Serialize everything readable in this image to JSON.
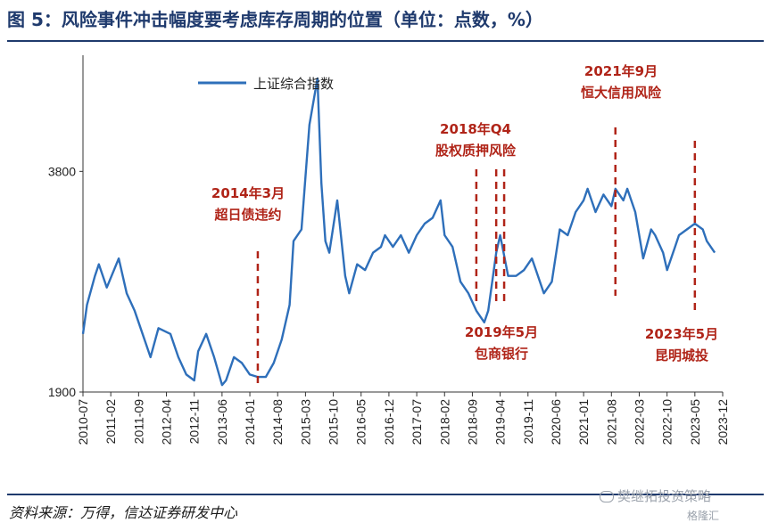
{
  "header": {
    "title": "图 5：风险事件冲击幅度要考虑库存周期的位置（单位：点数，%）"
  },
  "footer": {
    "source": "资料来源：万得，信达证券研发中心",
    "watermark": "樊继拓投资策略",
    "watermark_sub": "格隆汇"
  },
  "chart_data": {
    "type": "line",
    "title": "",
    "xlabel": "",
    "ylabel": "",
    "ylim": [
      1900,
      4800
    ],
    "yticks": [
      1900,
      3800
    ],
    "xlim": [
      "2010-07",
      "2023-12"
    ],
    "xticks": [
      "2010-07",
      "2011-02",
      "2011-09",
      "2012-04",
      "2012-11",
      "2013-06",
      "2014-01",
      "2014-08",
      "2015-03",
      "2015-10",
      "2016-05",
      "2016-12",
      "2017-07",
      "2018-02",
      "2018-09",
      "2019-04",
      "2019-11",
      "2020-06",
      "2021-01",
      "2021-08",
      "2022-03",
      "2022-10",
      "2023-05",
      "2023-12"
    ],
    "legend": {
      "position": "top-left"
    },
    "series": [
      {
        "name": "上证综合指数",
        "color": "#2e6fba",
        "x": [
          "2010-07",
          "2010-08",
          "2010-10",
          "2010-11",
          "2011-01",
          "2011-04",
          "2011-06",
          "2011-08",
          "2011-10",
          "2011-12",
          "2012-02",
          "2012-05",
          "2012-07",
          "2012-09",
          "2012-11",
          "2012-12",
          "2013-02",
          "2013-04",
          "2013-06",
          "2013-07",
          "2013-09",
          "2013-11",
          "2014-01",
          "2014-03",
          "2014-05",
          "2014-07",
          "2014-09",
          "2014-11",
          "2014-12",
          "2015-02",
          "2015-04",
          "2015-06",
          "2015-07",
          "2015-08",
          "2015-09",
          "2015-11",
          "2016-01",
          "2016-02",
          "2016-04",
          "2016-06",
          "2016-08",
          "2016-10",
          "2016-11",
          "2017-01",
          "2017-03",
          "2017-05",
          "2017-07",
          "2017-09",
          "2017-11",
          "2018-01",
          "2018-02",
          "2018-04",
          "2018-06",
          "2018-08",
          "2018-10",
          "2018-12",
          "2019-01",
          "2019-03",
          "2019-04",
          "2019-06",
          "2019-08",
          "2019-10",
          "2019-12",
          "2020-01",
          "2020-03",
          "2020-05",
          "2020-07",
          "2020-09",
          "2020-11",
          "2021-01",
          "2021-02",
          "2021-04",
          "2021-06",
          "2021-08",
          "2021-09",
          "2021-11",
          "2021-12",
          "2022-02",
          "2022-04",
          "2022-06",
          "2022-07",
          "2022-09",
          "2022-10",
          "2022-12",
          "2023-01",
          "2023-03",
          "2023-05",
          "2023-07",
          "2023-08",
          "2023-10"
        ],
        "values": [
          2400,
          2650,
          2900,
          3000,
          2800,
          3050,
          2750,
          2600,
          2400,
          2200,
          2450,
          2400,
          2200,
          2050,
          2000,
          2250,
          2400,
          2200,
          1960,
          2000,
          2200,
          2150,
          2050,
          2030,
          2030,
          2150,
          2350,
          2650,
          3200,
          3300,
          4200,
          4600,
          3700,
          3200,
          3100,
          3550,
          2900,
          2750,
          3000,
          2950,
          3100,
          3150,
          3250,
          3150,
          3250,
          3100,
          3250,
          3350,
          3400,
          3550,
          3250,
          3150,
          2850,
          2750,
          2600,
          2500,
          2600,
          3100,
          3250,
          2900,
          2900,
          2950,
          3050,
          2950,
          2750,
          2850,
          3300,
          3250,
          3450,
          3550,
          3650,
          3450,
          3600,
          3500,
          3650,
          3550,
          3650,
          3450,
          3050,
          3300,
          3250,
          3100,
          2950,
          3150,
          3250,
          3300,
          3350,
          3300,
          3200,
          3100
        ]
      }
    ],
    "annotations": [
      {
        "label_lines": [
          "2014年3月",
          "超日债违约"
        ],
        "date": "2014-03",
        "color": "#b02418"
      },
      {
        "label_lines": [
          "2018年Q4",
          "股权质押风险"
        ],
        "date_range": [
          "2018-10",
          "2019-03"
        ],
        "color": "#b02418"
      },
      {
        "label_lines": [
          "2019年5月",
          "包商银行"
        ],
        "date": "2019-05",
        "color": "#b02418"
      },
      {
        "label_lines": [
          "2021年9月",
          "恒大信用风险"
        ],
        "date": "2021-09",
        "color": "#b02418"
      },
      {
        "label_lines": [
          "2023年5月",
          "昆明城投"
        ],
        "date": "2023-05",
        "color": "#b02418"
      }
    ]
  }
}
